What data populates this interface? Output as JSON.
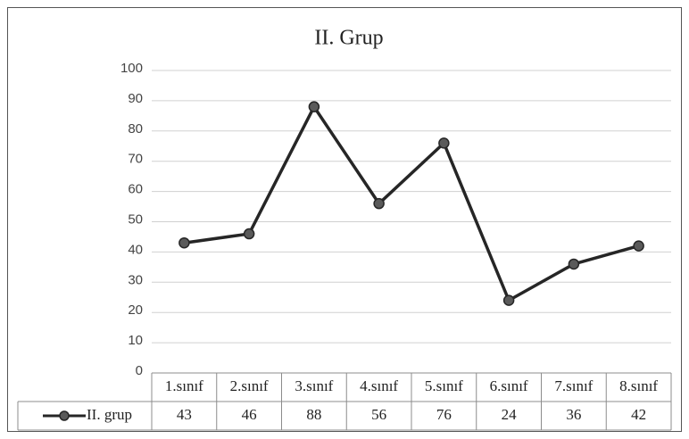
{
  "chart_data": {
    "type": "line",
    "title": "II. Grup",
    "categories": [
      "1.sınıf",
      "2.sınıf",
      "3.sınıf",
      "4.sınıf",
      "5.sınıf",
      "6.sınıf",
      "7.sınıf",
      "8.sınıf"
    ],
    "series": [
      {
        "name": "II. grup",
        "color": "#262626",
        "values": [
          43,
          46,
          88,
          56,
          76,
          24,
          36,
          42
        ]
      }
    ],
    "ylim": [
      0,
      100
    ],
    "yticks": [
      0,
      10,
      20,
      30,
      40,
      50,
      60,
      70,
      80,
      90,
      100
    ],
    "grid": true,
    "data_table": true
  }
}
